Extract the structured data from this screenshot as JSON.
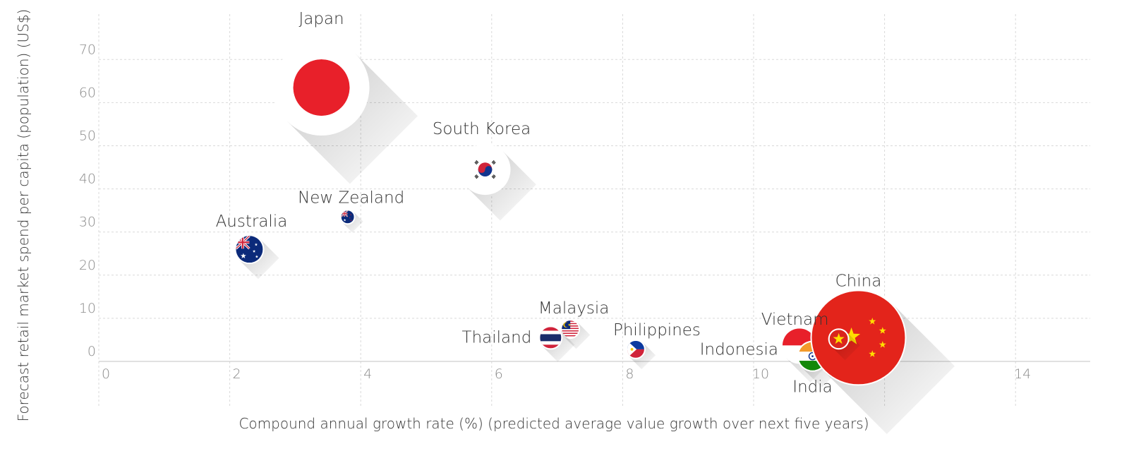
{
  "chart_data": {
    "type": "scatter",
    "title": "",
    "xlabel": "Compound annual growth rate (%) (predicted average value growth over next five years)",
    "ylabel": "Forecast retail market spend per capita (population) (US$)",
    "xlim": [
      0,
      15
    ],
    "ylim": [
      -10,
      80
    ],
    "x_ticks": [
      0,
      2,
      4,
      6,
      8,
      10,
      14
    ],
    "y_ticks": [
      0,
      10,
      20,
      30,
      40,
      50,
      60,
      70
    ],
    "grid": true,
    "points": [
      {
        "name": "Japan",
        "x": 3.4,
        "y": 63.5,
        "flag": "japan-flag-icon"
      },
      {
        "name": "South Korea",
        "x": 5.9,
        "y": 44.5,
        "flag": "south-korea-flag-icon"
      },
      {
        "name": "New Zealand",
        "x": 3.8,
        "y": 33.5,
        "flag": "new-zealand-flag-icon"
      },
      {
        "name": "Australia",
        "x": 2.3,
        "y": 26,
        "flag": "australia-flag-icon"
      },
      {
        "name": "Malaysia",
        "x": 7.2,
        "y": 7.5,
        "flag": "malaysia-flag-icon"
      },
      {
        "name": "Thailand",
        "x": 6.9,
        "y": 5.5,
        "flag": "thailand-flag-icon"
      },
      {
        "name": "Philippines",
        "x": 8.2,
        "y": 2.8,
        "flag": "philippines-flag-icon"
      },
      {
        "name": "Vietnam",
        "x": 11.3,
        "y": 5.2,
        "flag": "vietnam-flag-icon"
      },
      {
        "name": "Indonesia",
        "x": 10.7,
        "y": 3.7,
        "flag": "indonesia-flag-icon"
      },
      {
        "name": "India",
        "x": 10.9,
        "y": 1.2,
        "flag": "india-flag-icon"
      },
      {
        "name": "China",
        "x": 11.6,
        "y": 5.5,
        "flag": "china-flag-icon"
      }
    ]
  }
}
